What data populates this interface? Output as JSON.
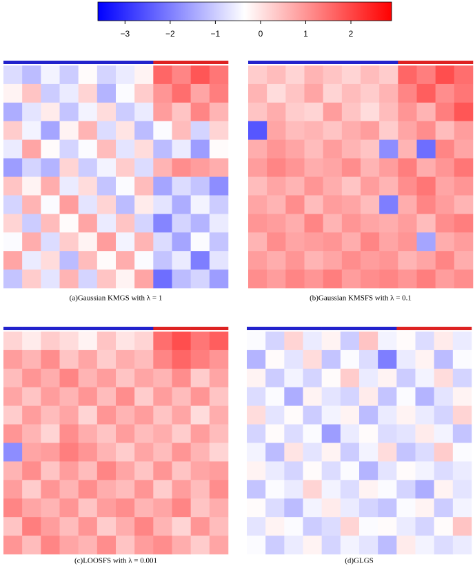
{
  "colorbar": {
    "zlim": [
      -3.6,
      2.9
    ],
    "colors": [
      "#0000ff",
      "#ffffff",
      "#ff0000"
    ],
    "ticks": [
      {
        "value": -3,
        "label": "−3"
      },
      {
        "value": -2,
        "label": "−2"
      },
      {
        "value": -1,
        "label": "−1"
      },
      0,
      1,
      2
    ]
  },
  "chart_data": [
    {
      "type": "heatmap",
      "caption": "(a)Gaussian KMGS with λ = 1",
      "class_colors": [
        "#2222cc",
        "#dd2222"
      ],
      "column_class": [
        0,
        0,
        0,
        0,
        0,
        0,
        0,
        0,
        1,
        1,
        1,
        1
      ],
      "values": [
        [
          -0.8,
          -1.2,
          -0.5,
          -1.0,
          -0.3,
          -0.9,
          -0.6,
          -0.2,
          1.6,
          1.2,
          1.8,
          1.4
        ],
        [
          -0.2,
          0.4,
          -1.0,
          -0.6,
          0.2,
          -1.3,
          -0.4,
          0.3,
          1.0,
          1.5,
          0.8,
          1.3
        ],
        [
          -1.4,
          -0.7,
          -0.1,
          -1.1,
          -0.5,
          0.1,
          -1.0,
          -0.6,
          0.9,
          0.4,
          1.2,
          0.6
        ],
        [
          0.3,
          -0.5,
          -1.5,
          -0.2,
          0.6,
          -0.8,
          0.0,
          -1.2,
          -0.4,
          0.5,
          -0.9,
          0.2
        ],
        [
          -0.6,
          0.8,
          -0.3,
          -0.9,
          -0.4,
          0.5,
          -0.7,
          0.1,
          -1.2,
          -0.6,
          -1.6,
          -0.3
        ],
        [
          -1.6,
          -0.9,
          -1.3,
          0.2,
          -1.0,
          -0.5,
          0.3,
          -0.8,
          0.6,
          1.1,
          0.9,
          0.7
        ],
        [
          0.4,
          -0.2,
          0.7,
          -0.6,
          0.1,
          -1.1,
          -0.4,
          0.5,
          -1.5,
          -0.8,
          -1.1,
          -1.8
        ],
        [
          -0.9,
          0.6,
          -0.4,
          0.9,
          -0.7,
          0.2,
          -1.2,
          -0.1,
          -0.7,
          -1.4,
          -0.5,
          -1.0
        ],
        [
          0.2,
          -1.0,
          0.5,
          -0.3,
          0.8,
          -0.6,
          0.4,
          -0.9,
          -1.9,
          -0.9,
          -1.3,
          -0.6
        ],
        [
          -0.4,
          0.7,
          -0.8,
          0.3,
          -0.2,
          0.9,
          -0.5,
          0.6,
          -0.8,
          -1.5,
          -0.4,
          -1.1
        ],
        [
          0.8,
          -0.6,
          0.1,
          -1.2,
          0.5,
          -0.3,
          0.7,
          -0.4,
          -1.1,
          -0.6,
          -2.0,
          -0.7
        ],
        [
          -1.1,
          0.3,
          -0.7,
          0.6,
          -0.9,
          0.4,
          -0.2,
          0.8,
          -2.2,
          -1.2,
          -0.9,
          -1.6
        ]
      ]
    },
    {
      "type": "heatmap",
      "caption": "(b)Gaussian KMSFS with λ = 0.1",
      "class_colors": [
        "#2222cc",
        "#dd2222"
      ],
      "column_class": [
        0,
        0,
        0,
        0,
        0,
        0,
        0,
        0,
        1,
        1,
        1,
        1
      ],
      "values": [
        [
          0.3,
          0.5,
          0.2,
          0.6,
          0.4,
          0.2,
          0.5,
          0.3,
          1.6,
          1.3,
          1.9,
          1.5
        ],
        [
          0.6,
          0.1,
          0.4,
          0.8,
          0.2,
          0.5,
          0.3,
          0.6,
          1.2,
          1.7,
          1.1,
          1.4
        ],
        [
          0.4,
          0.7,
          0.3,
          0.2,
          0.9,
          0.4,
          0.1,
          0.5,
          1.0,
          0.6,
          1.3,
          1.8
        ],
        [
          -2.5,
          0.8,
          0.5,
          0.6,
          0.4,
          0.7,
          0.9,
          0.3,
          0.8,
          1.1,
          0.5,
          0.9
        ],
        [
          0.7,
          1.0,
          0.8,
          0.5,
          0.9,
          0.6,
          0.4,
          -1.8,
          0.6,
          -2.2,
          1.2,
          0.8
        ],
        [
          0.9,
          1.2,
          1.0,
          0.7,
          0.8,
          1.1,
          0.6,
          0.9,
          1.3,
          0.7,
          1.0,
          1.4
        ],
        [
          0.5,
          0.8,
          0.6,
          1.0,
          0.7,
          0.4,
          0.9,
          0.6,
          1.1,
          1.4,
          0.8,
          1.0
        ],
        [
          0.8,
          0.6,
          1.1,
          0.5,
          0.9,
          0.8,
          0.5,
          -2.0,
          0.7,
          1.2,
          0.9,
          0.6
        ],
        [
          1.0,
          0.9,
          0.7,
          1.2,
          0.6,
          1.0,
          0.8,
          0.7,
          0.9,
          0.5,
          1.1,
          1.3
        ],
        [
          0.6,
          1.1,
          0.8,
          0.9,
          1.0,
          0.7,
          1.2,
          0.8,
          1.0,
          -1.5,
          0.7,
          0.9
        ],
        [
          0.9,
          0.7,
          1.0,
          0.6,
          0.8,
          1.1,
          0.9,
          1.0,
          0.6,
          0.8,
          1.2,
          0.7
        ],
        [
          1.1,
          0.9,
          1.2,
          1.0,
          1.3,
          0.9,
          1.1,
          1.2,
          1.0,
          1.3,
          0.9,
          1.1
        ]
      ]
    },
    {
      "type": "heatmap",
      "caption": "(c)LOOSFS with λ = 0.001",
      "class_colors": [
        "#2222cc",
        "#dd2222"
      ],
      "column_class": [
        0,
        0,
        0,
        0,
        0,
        0,
        0,
        0,
        1,
        1,
        1,
        1
      ],
      "values": [
        [
          0.2,
          -0.1,
          0.3,
          0.1,
          -0.2,
          0.4,
          0.0,
          0.2,
          1.5,
          1.9,
          1.4,
          1.7
        ],
        [
          0.9,
          0.6,
          1.1,
          0.4,
          0.8,
          0.3,
          0.7,
          0.5,
          1.2,
          1.6,
          1.3,
          1.0
        ],
        [
          0.5,
          1.0,
          0.7,
          1.2,
          0.6,
          0.9,
          0.4,
          0.8,
          0.6,
          1.1,
          0.3,
          0.8
        ],
        [
          0.8,
          0.4,
          0.9,
          0.6,
          1.0,
          0.5,
          1.1,
          0.3,
          0.9,
          0.5,
          1.0,
          0.4
        ],
        [
          0.3,
          0.9,
          0.5,
          0.8,
          0.2,
          1.0,
          0.6,
          0.9,
          0.4,
          0.8,
          0.1,
          0.7
        ],
        [
          1.0,
          0.6,
          0.2,
          1.1,
          0.7,
          0.4,
          0.9,
          0.5,
          0.7,
          0.3,
          0.9,
          0.5
        ],
        [
          -1.8,
          0.8,
          0.9,
          1.3,
          1.0,
          0.6,
          0.3,
          0.8,
          0.5,
          1.0,
          0.6,
          0.2
        ],
        [
          0.6,
          1.1,
          0.4,
          0.9,
          0.5,
          1.2,
          0.8,
          0.4,
          1.0,
          0.4,
          0.8,
          0.9
        ],
        [
          0.9,
          0.3,
          1.0,
          0.6,
          1.1,
          0.7,
          0.5,
          1.0,
          0.3,
          0.9,
          0.5,
          1.1
        ],
        [
          1.2,
          0.8,
          0.6,
          1.0,
          0.4,
          0.9,
          1.1,
          0.6,
          0.8,
          1.2,
          0.4,
          0.7
        ],
        [
          0.4,
          1.3,
          0.9,
          0.5,
          1.0,
          0.3,
          0.7,
          1.2,
          0.6,
          0.2,
          1.0,
          0.5
        ],
        [
          1.0,
          0.5,
          1.2,
          0.8,
          0.6,
          1.1,
          0.4,
          0.9,
          1.1,
          0.7,
          0.3,
          0.8
        ]
      ]
    },
    {
      "type": "heatmap",
      "caption": "(d)GLGS",
      "class_colors": [
        "#2222cc",
        "#dd2222"
      ],
      "column_class": [
        0,
        0,
        0,
        0,
        0,
        0,
        0,
        0,
        1,
        1,
        1,
        1
      ],
      "values": [
        [
          -0.4,
          -0.9,
          0.2,
          -0.6,
          -0.2,
          -1.0,
          0.4,
          -0.5,
          -0.3,
          -0.8,
          -0.1,
          -0.6
        ],
        [
          -1.3,
          -0.3,
          -0.7,
          0.1,
          -1.1,
          -0.4,
          -0.8,
          -2.0,
          -0.6,
          -0.2,
          -1.2,
          -0.4
        ],
        [
          -0.2,
          -1.0,
          -0.5,
          -0.9,
          -0.3,
          0.3,
          -0.6,
          -0.2,
          -1.0,
          -0.5,
          0.1,
          -0.9
        ],
        [
          -0.8,
          -0.4,
          -1.4,
          -0.2,
          -0.7,
          -0.9,
          -0.1,
          -1.1,
          -0.4,
          -1.3,
          -0.7,
          -0.2
        ],
        [
          0.1,
          -0.7,
          -0.3,
          -1.0,
          -0.5,
          -0.2,
          -1.2,
          -0.6,
          -0.2,
          -0.6,
          -0.9,
          0.2
        ],
        [
          -0.9,
          -0.3,
          -0.8,
          -0.4,
          -1.6,
          -0.6,
          -0.3,
          -0.8,
          -0.7,
          -0.1,
          -0.5,
          -1.1
        ],
        [
          -0.5,
          -1.2,
          0.0,
          -0.7,
          -0.2,
          -1.0,
          -0.5,
          0.1,
          -1.1,
          -0.8,
          0.3,
          -0.4
        ],
        [
          -0.2,
          -0.6,
          -0.9,
          -0.3,
          -0.8,
          -0.4,
          -1.3,
          -0.7,
          -0.3,
          -0.5,
          -0.8,
          -0.6
        ],
        [
          -1.1,
          -0.4,
          -0.6,
          0.2,
          -0.5,
          -0.8,
          -0.2,
          -0.4,
          -0.9,
          -1.4,
          -0.2,
          -0.7
        ],
        [
          -0.3,
          -0.8,
          -1.2,
          -0.5,
          -0.1,
          -0.6,
          -0.9,
          -1.1,
          -0.4,
          -0.2,
          -1.0,
          -0.5
        ],
        [
          -0.7,
          -0.2,
          -0.4,
          -1.0,
          -0.8,
          0.2,
          -0.4,
          -0.3,
          -0.6,
          -0.9,
          -0.3,
          0.4
        ],
        [
          -0.4,
          -1.0,
          -0.6,
          -0.2,
          -0.9,
          -0.5,
          -0.7,
          -1.2,
          -0.1,
          -0.5,
          -0.8,
          -0.6
        ]
      ]
    }
  ]
}
